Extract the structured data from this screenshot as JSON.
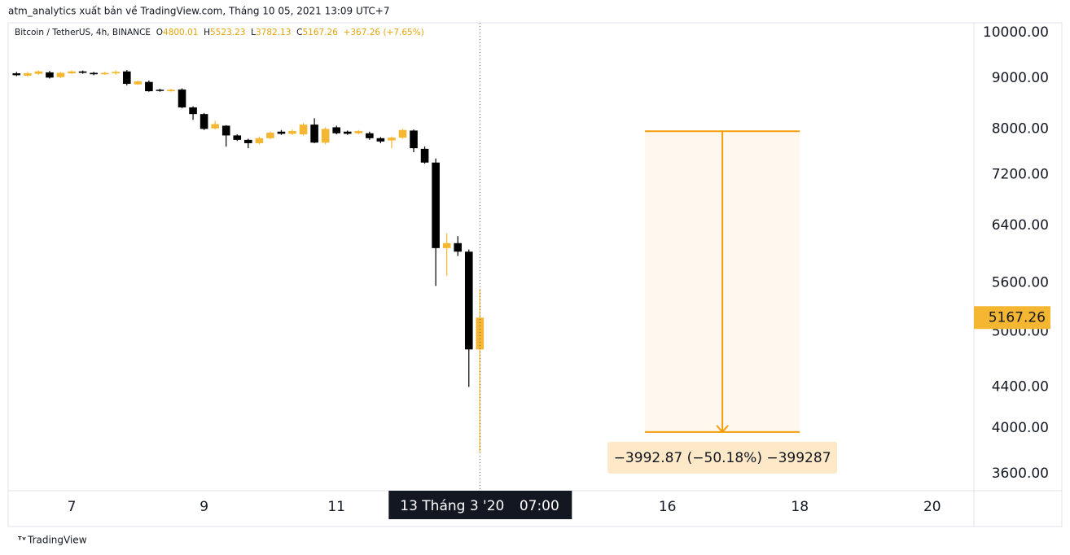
{
  "header": "atm_analytics xuất bản về TradingView.com, Tháng 10 05, 2021 13:09 UTC+7",
  "footer": "TradingView",
  "chart_data": {
    "type": "candlestick",
    "title": "Bitcoin / TetherUS, 4h, BINANCE",
    "legend_keys": [
      "O",
      "H",
      "L",
      "C"
    ],
    "change": "+367.26 (+7.65%)",
    "up_color": "#f5b731",
    "down_color": "#000000",
    "log_scale": true,
    "grid": false,
    "x": [
      6.1667,
      6.3333,
      6.5,
      6.6667,
      6.8333,
      7,
      7.1667,
      7.3333,
      7.5,
      7.6667,
      7.8333,
      8,
      8.1667,
      8.3333,
      8.5,
      8.6667,
      8.8333,
      9,
      9.1667,
      9.3333,
      9.5,
      9.6667,
      9.8333,
      10,
      10.1667,
      10.3333,
      10.5,
      10.6667,
      10.8333,
      11,
      11.1667,
      11.3333,
      11.5,
      11.6667,
      11.8333,
      12,
      12.1667,
      12.3333,
      12.5,
      12.6667,
      12.8333,
      13,
      13.1667
    ],
    "open": [
      9100,
      9050,
      9090,
      9120,
      9020,
      9100,
      9140,
      9110,
      9080,
      9100,
      9140,
      8870,
      8920,
      8760,
      8730,
      8764,
      8410,
      8280,
      8010,
      8060,
      7880,
      7800,
      7740,
      7830,
      7950,
      7910,
      7900,
      8080,
      7750,
      8030,
      7950,
      7920,
      7920,
      7830,
      7790,
      7840,
      7970,
      7640,
      7400,
      6070,
      6140,
      6020,
      4800.01
    ],
    "high": [
      9130,
      9130,
      9160,
      9150,
      9130,
      9160,
      9160,
      9130,
      9130,
      9160,
      9170,
      8950,
      8950,
      8780,
      8780,
      8790,
      8430,
      8300,
      8150,
      8070,
      7900,
      7820,
      7860,
      7950,
      7980,
      7990,
      8110,
      8200,
      8030,
      8060,
      7970,
      7980,
      7950,
      7850,
      7860,
      8000,
      7990,
      7680,
      7470,
      6280,
      6240,
      6050,
      5523.23
    ],
    "low": [
      9040,
      9030,
      9070,
      8990,
      9000,
      9080,
      9090,
      9060,
      9070,
      9070,
      8850,
      8860,
      8720,
      8720,
      8720,
      8390,
      8170,
      7980,
      7990,
      7680,
      7780,
      7650,
      7720,
      7810,
      7890,
      7890,
      7880,
      7740,
      7720,
      7900,
      7890,
      7900,
      7800,
      7740,
      7650,
      7820,
      7580,
      7380,
      5560,
      5690,
      5960,
      4400,
      3782.13
    ],
    "close": [
      9060,
      9100,
      9140,
      9010,
      9110,
      9140,
      9110,
      9080,
      9110,
      9130,
      8880,
      8930,
      8730,
      8740,
      8760,
      8409,
      8280,
      8000,
      8090,
      7880,
      7800,
      7740,
      7830,
      7930,
      7910,
      7960,
      8080,
      7750,
      8000,
      7920,
      7910,
      7960,
      7830,
      7770,
      7840,
      7980,
      7650,
      7400,
      6070,
      6140,
      6020,
      4800.01,
      5167.26
    ],
    "xlim": [
      6.04,
      20.63
    ],
    "xticks": [
      7,
      9,
      11,
      16,
      18,
      20
    ],
    "ylim": [
      3460,
      10230
    ],
    "yticks": [
      {
        "value": 10000,
        "label": "10000.00"
      },
      {
        "value": 9000,
        "label": "9000.00"
      },
      {
        "value": 8000,
        "label": "8000.00"
      },
      {
        "value": 7200,
        "label": "7200.00"
      },
      {
        "value": 6400,
        "label": "6400.00"
      },
      {
        "value": 5600,
        "label": "5600.00"
      },
      {
        "value": 5000,
        "label": "5000.00"
      },
      {
        "value": 4400,
        "label": "4400.00"
      },
      {
        "value": 4000,
        "label": "4000.00"
      },
      {
        "value": 3600,
        "label": "3600.00"
      }
    ],
    "crosshair": {
      "x": 13.1667,
      "date": "13 Tháng 3 '20",
      "time": "07:00"
    },
    "measure": {
      "x": [
        15.66,
        18
      ],
      "start": 7957,
      "end": 3964,
      "label": "−3992.87 (−50.18%) −399287",
      "color": "#f59d0b"
    }
  }
}
